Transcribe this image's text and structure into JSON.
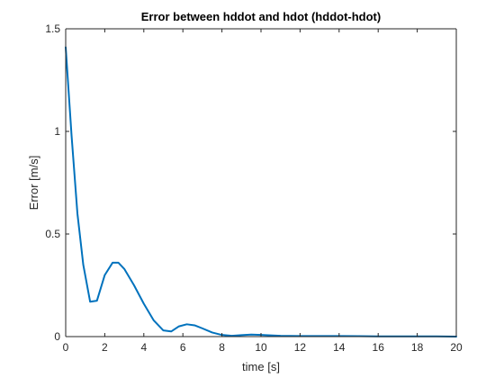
{
  "chart_data": {
    "type": "line",
    "title": "Error between hddot and hdot (hddot-hdot)",
    "xlabel": "time [s]",
    "ylabel": "Error [m/s]",
    "xlim": [
      0,
      20
    ],
    "ylim": [
      0,
      1.5
    ],
    "xticks": [
      0,
      2,
      4,
      6,
      8,
      10,
      12,
      14,
      16,
      18,
      20
    ],
    "yticks": [
      0,
      0.5,
      1,
      1.5
    ],
    "xtick_labels": [
      "0",
      "2",
      "4",
      "6",
      "8",
      "10",
      "12",
      "14",
      "16",
      "18",
      "20"
    ],
    "ytick_labels": [
      "0",
      "0.5",
      "1",
      "1.5"
    ],
    "grid": false,
    "box": true,
    "colors": {
      "line": "#0072BD",
      "axis": "#262626",
      "background": "#ffffff"
    },
    "series": [
      {
        "x": [
          0,
          0.3,
          0.6,
          0.9,
          1.25,
          1.6,
          2.0,
          2.4,
          2.7,
          3.0,
          3.5,
          4.0,
          4.5,
          5.0,
          5.4,
          5.8,
          6.2,
          6.6,
          7.0,
          7.5,
          8.0,
          8.5,
          9.0,
          9.5,
          10.0,
          11.0,
          12.0,
          13.0,
          14.0,
          15.0,
          16.0,
          17.0,
          18.0,
          19.0,
          20.0
        ],
        "y": [
          1.41,
          0.98,
          0.6,
          0.35,
          0.17,
          0.175,
          0.3,
          0.36,
          0.36,
          0.33,
          0.25,
          0.16,
          0.08,
          0.03,
          0.025,
          0.05,
          0.06,
          0.055,
          0.04,
          0.02,
          0.008,
          0.004,
          0.007,
          0.01,
          0.008,
          0.004,
          0.003,
          0.003,
          0.003,
          0.002,
          0.001,
          0.001,
          0.001,
          0.001,
          0.0
        ]
      }
    ]
  }
}
